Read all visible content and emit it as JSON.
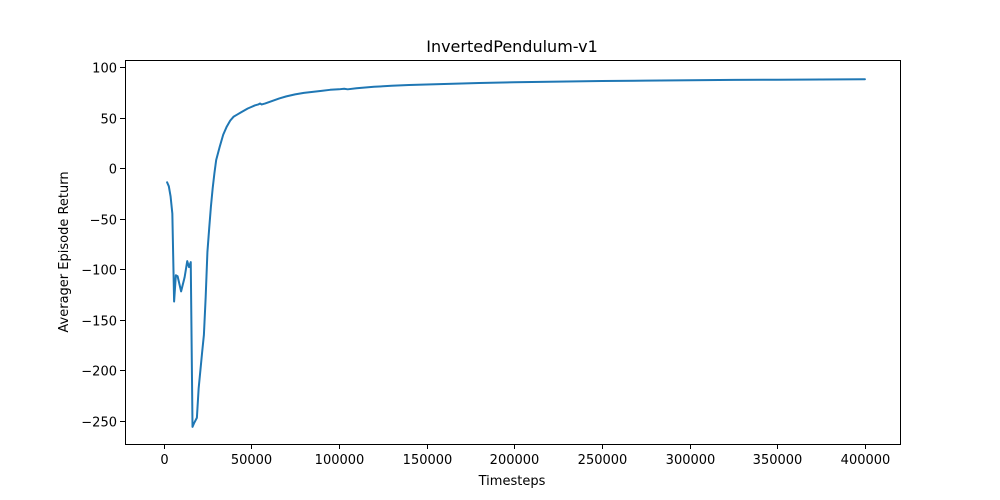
{
  "chart_data": {
    "type": "line",
    "title": "InvertedPendulum-v1",
    "xlabel": "Timesteps",
    "ylabel": "Averager Episode Return",
    "xlim": [
      -22000,
      420000
    ],
    "ylim": [
      -273,
      107
    ],
    "xticks": [
      0,
      50000,
      100000,
      150000,
      200000,
      250000,
      300000,
      350000,
      400000
    ],
    "xtick_labels": [
      "0",
      "50000",
      "100000",
      "150000",
      "200000",
      "250000",
      "300000",
      "350000",
      "400000"
    ],
    "yticks": [
      -250,
      -200,
      -150,
      -100,
      -50,
      0,
      50,
      100
    ],
    "ytick_labels": [
      "−250",
      "−200",
      "−150",
      "−100",
      "−50",
      "0",
      "50",
      "100"
    ],
    "grid": false,
    "series": [
      {
        "color": "#1f77b4",
        "x": [
          2000,
          3000,
          4000,
          5000,
          6000,
          7000,
          8000,
          10000,
          12000,
          13500,
          14500,
          15500,
          16500,
          17500,
          19000,
          20000,
          21000,
          22000,
          23000,
          24000,
          25000,
          26000,
          27000,
          28000,
          29000,
          30000,
          32000,
          34000,
          36000,
          38000,
          40000,
          42000,
          44000,
          46000,
          48000,
          50000,
          52000,
          54000,
          55000,
          56000,
          58000,
          62000,
          66000,
          70000,
          75000,
          80000,
          85000,
          90000,
          95000,
          100000,
          103000,
          105000,
          110000,
          120000,
          130000,
          140000,
          150000,
          160000,
          180000,
          200000,
          225000,
          250000,
          275000,
          300000,
          325000,
          350000,
          375000,
          400000
        ],
        "y": [
          -14,
          -18,
          -28,
          -45,
          -132,
          -106,
          -107,
          -122,
          -108,
          -92,
          -98,
          -93,
          -256,
          -252,
          -247,
          -218,
          -200,
          -182,
          -165,
          -128,
          -83,
          -60,
          -38,
          -20,
          -5,
          8,
          21,
          33,
          41,
          47,
          51,
          53,
          55,
          57,
          59,
          60.5,
          62,
          63,
          64,
          63,
          64,
          66.5,
          69,
          71,
          73,
          74.5,
          75.5,
          76.5,
          77.5,
          78,
          78.5,
          78,
          79,
          80.5,
          81.5,
          82.3,
          82.8,
          83.3,
          84.3,
          85,
          85.6,
          86.2,
          86.6,
          87,
          87.3,
          87.5,
          87.7,
          87.9
        ]
      }
    ]
  }
}
